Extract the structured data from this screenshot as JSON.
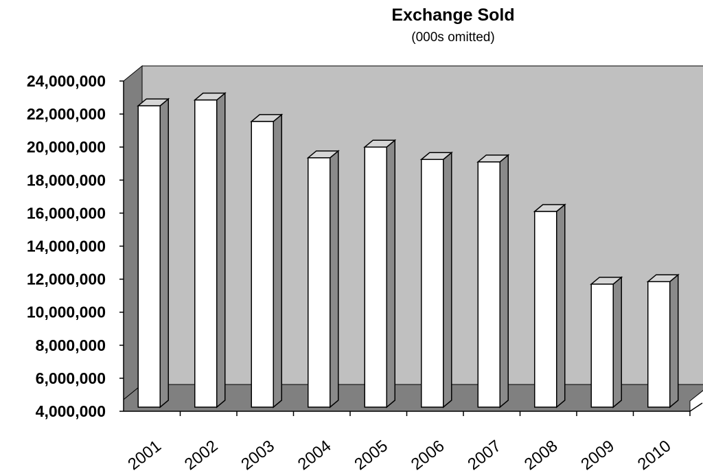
{
  "chart_data": {
    "type": "bar",
    "title": "Exchange Sold",
    "subtitle": "(000s omitted)",
    "xlabel": "",
    "ylabel": "",
    "categories": [
      "2001",
      "2002",
      "2003",
      "2004",
      "2005",
      "2006",
      "2007",
      "2008",
      "2009",
      "2010"
    ],
    "values": [
      22500000,
      22850000,
      21550000,
      19350000,
      20000000,
      19250000,
      19100000,
      16100000,
      11700000,
      11850000
    ],
    "ylim": [
      4000000,
      24000000
    ],
    "yticks": [
      4000000,
      6000000,
      8000000,
      10000000,
      12000000,
      14000000,
      16000000,
      18000000,
      20000000,
      22000000,
      24000000
    ],
    "ytick_labels": [
      "4,000,000",
      "6,000,000",
      "8,000,000",
      "10,000,000",
      "12,000,000",
      "14,000,000",
      "16,000,000",
      "18,000,000",
      "20,000,000",
      "22,000,000",
      "24,000,000"
    ],
    "grid": false,
    "legend": "none",
    "style": "3d-columns",
    "colors": {
      "bar_face": "#ffffff",
      "bar_side": "#8a8a8a",
      "bar_top": "#d6d6d6",
      "back_wall": "#c0c0c0",
      "side_wall": "#7f7f7f",
      "floor": "#808080"
    }
  }
}
